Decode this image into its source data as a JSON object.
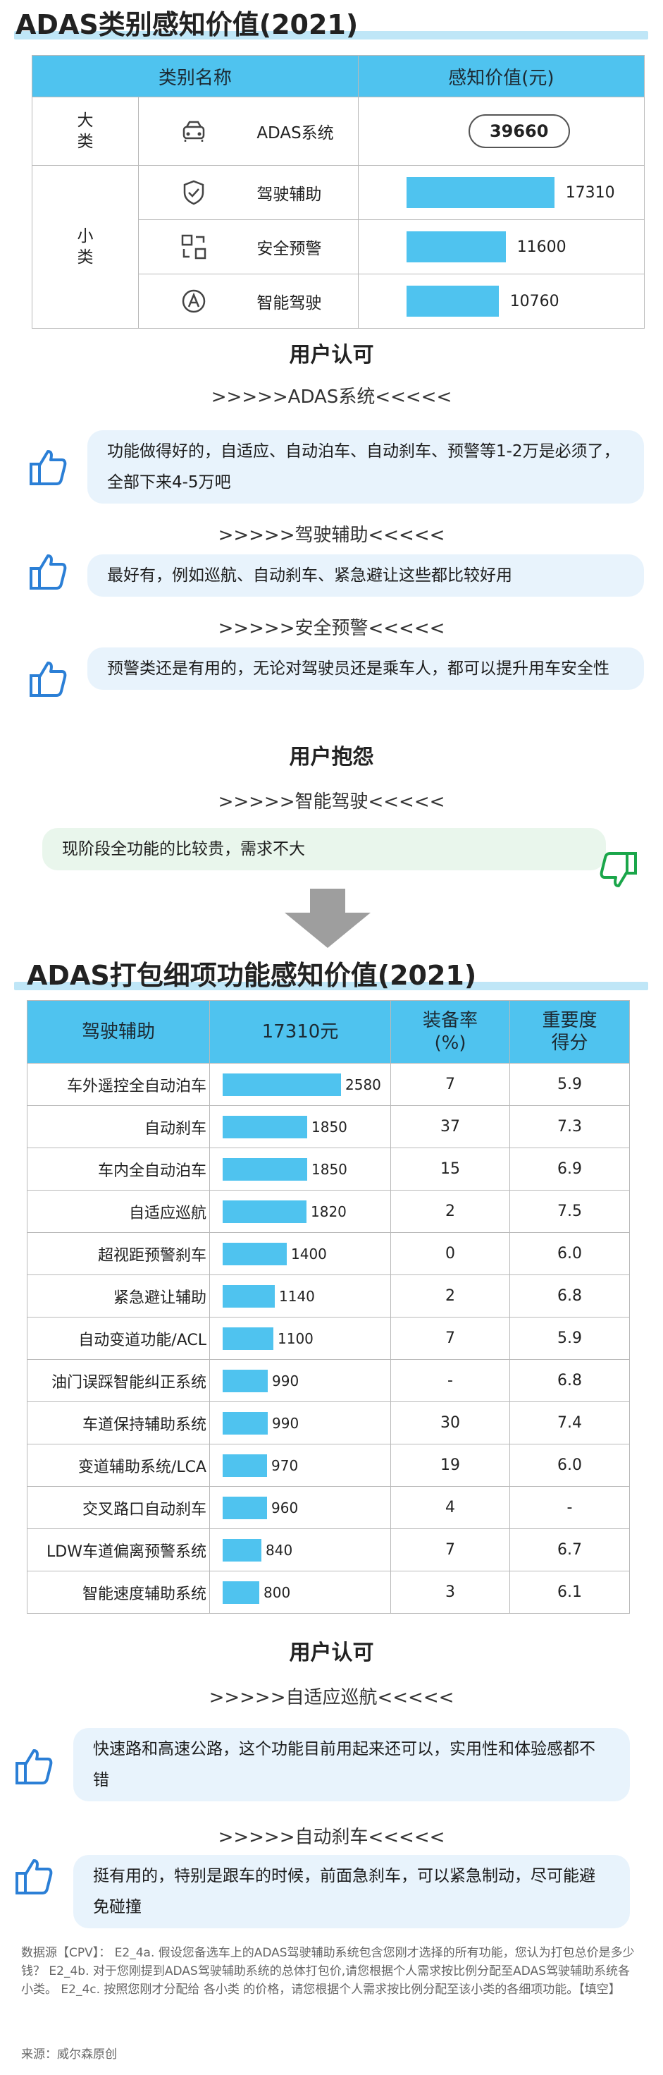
{
  "title1": "ADAS类别感知价值(2021)",
  "table1": {
    "header_category": "类别名称",
    "header_value": "感知价值(元)",
    "big_label": "大\n类",
    "small_label": "小\n类",
    "total": {
      "icon": "car-icon",
      "name": "ADAS系统",
      "value": "39660"
    },
    "rows": [
      {
        "icon": "shield-check-icon",
        "name": "驾驶辅助",
        "value": 17310,
        "label": "17310"
      },
      {
        "icon": "warning-screen-icon",
        "name": "安全预警",
        "value": 11600,
        "label": "11600"
      },
      {
        "icon": "autonomous-a-icon",
        "name": "智能驾驶",
        "value": 10760,
        "label": "10760"
      }
    ]
  },
  "section1": {
    "title": "用户认可",
    "groups": [
      {
        "sub": ">>>>>ADAS系统<<<<<",
        "quote": "功能做得好的，自适应、自动泊车、自动刹车、预警等1-2万是必须了，全部下来4-5万吧"
      },
      {
        "sub": ">>>>>驾驶辅助<<<<<",
        "quote": "最好有，例如巡航、自动刹车、紧急避让这些都比较好用"
      },
      {
        "sub": ">>>>>安全预警<<<<<",
        "quote": "预警类还是有用的，无论对驾驶员还是乘车人，都可以提升用车安全性"
      }
    ]
  },
  "section2": {
    "title": "用户抱怨",
    "sub": ">>>>>智能驾驶<<<<<",
    "quote": "现阶段全功能的比较贵，需求不大"
  },
  "title2": "ADAS打包细项功能感知价值(2021)",
  "chart_data": {
    "type": "table",
    "title": "ADAS打包细项功能感知价值(2021)",
    "columns": [
      "驾驶辅助",
      "17310元",
      "装备率(%)",
      "重要度得分"
    ],
    "rows": [
      {
        "name": "车外遥控全自动泊车",
        "value": 2580,
        "rate": "7",
        "score": "5.9"
      },
      {
        "name": "自动刹车",
        "value": 1850,
        "rate": "37",
        "score": "7.3"
      },
      {
        "name": "车内全自动泊车",
        "value": 1850,
        "rate": "15",
        "score": "6.9"
      },
      {
        "name": "自适应巡航",
        "value": 1820,
        "rate": "2",
        "score": "7.5"
      },
      {
        "name": "超视距预警刹车",
        "value": 1400,
        "rate": "0",
        "score": "6.0"
      },
      {
        "name": "紧急避让辅助",
        "value": 1140,
        "rate": "2",
        "score": "6.8"
      },
      {
        "name": "自动变道功能/ACL",
        "value": 1100,
        "rate": "7",
        "score": "5.9"
      },
      {
        "name": "油门误踩智能纠正系统",
        "value": 990,
        "rate": "-",
        "score": "6.8"
      },
      {
        "name": "车道保持辅助系统",
        "value": 990,
        "rate": "30",
        "score": "7.4"
      },
      {
        "name": "变道辅助系统/LCA",
        "value": 970,
        "rate": "19",
        "score": "6.0"
      },
      {
        "name": "交叉路口自动刹车",
        "value": 960,
        "rate": "4",
        "score": "-"
      },
      {
        "name": "LDW车道偏离预警系统",
        "value": 840,
        "rate": "7",
        "score": "6.7"
      },
      {
        "name": "智能速度辅助系统",
        "value": 800,
        "rate": "3",
        "score": "6.1"
      }
    ],
    "bar_color": "#4fc3ef"
  },
  "table2_header": {
    "c1": "驾驶辅助",
    "c2": "17310元",
    "c3": "装备率\n(%)",
    "c4": "重要度\n得分"
  },
  "section3": {
    "title": "用户认可",
    "groups": [
      {
        "sub": ">>>>>自适应巡航<<<<<",
        "quote": "快速路和高速公路，这个功能目前用起来还可以，实用性和体验感都不错"
      },
      {
        "sub": ">>>>>自动刹车<<<<<",
        "quote": "挺有用的，特别是跟车的时候，前面急刹车，可以紧急制动，尽可能避免碰撞"
      }
    ]
  },
  "footnote": "数据源【CPV】： E2_4a. 假设您备选车上的ADAS驾驶辅助系统包含您刚才选择的所有功能，您认为打包总价是多少钱？ E2_4b. 对于您刚提到ADAS驾驶辅助系统的总体打包价,请您根据个人需求按比例分配至ADAS驾驶辅助系统各小类。 E2_4c. 按照您刚才分配给 各小类 的价格，请您根据个人需求按比例分配至该小类的各细项功能。【填空】",
  "source": "来源：威尔森原创",
  "colors": {
    "accent": "#4fc3ef",
    "thumb_blue": "#2b7fd6",
    "thumb_green": "#1aa64a"
  }
}
